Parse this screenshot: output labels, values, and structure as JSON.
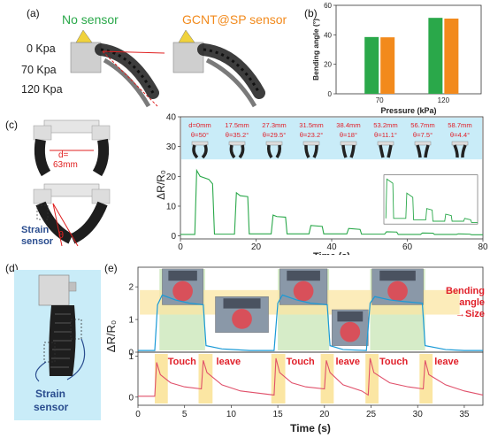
{
  "panel_labels": [
    "(a)",
    "(b)",
    "(c)",
    "(d)",
    "(e)"
  ],
  "panel_a": {
    "no_sensor": "No sensor",
    "sensor": "GCNT@SP sensor",
    "pressures": [
      "0 Kpa",
      "70 Kpa",
      "120 Kpa"
    ]
  },
  "panel_c": {
    "d_label": "d=",
    "d_value": "63mm",
    "theta": "θ",
    "strain_sensor": [
      "Strain",
      "sensor"
    ],
    "top_labels": [
      {
        "d": "d=0mm",
        "theta": "θ=50°"
      },
      {
        "d": "17.5mm",
        "theta": "θ=35.2°"
      },
      {
        "d": "27.3mm",
        "theta": "θ=29.5°"
      },
      {
        "d": "31.5mm",
        "theta": "θ=23.2°"
      },
      {
        "d": "38.4mm",
        "theta": "θ=18°"
      },
      {
        "d": "53.2mm",
        "theta": "θ=11.1°"
      },
      {
        "d": "56.7mm",
        "theta": "θ=7.5°"
      },
      {
        "d": "58.7mm",
        "theta": "θ=4.4°"
      }
    ]
  },
  "panel_d": {
    "label": [
      "Strain",
      "sensor"
    ]
  },
  "panel_e": {
    "annotation": [
      "Bending",
      "angle",
      "→Size"
    ],
    "touch": "Touch",
    "leave": "leave"
  },
  "colors": {
    "green": "#2aa84a",
    "orange": "#f28a1c",
    "red_text": "#e0202a",
    "blue_line": "#1a9ad6",
    "red_line": "#e0506a",
    "light_blue": "#c9ecf8",
    "light_green": "#d6ecc8",
    "light_yellow": "#fbe6a3"
  },
  "chart_data": [
    {
      "type": "bar",
      "panel": "b",
      "categories": [
        "70",
        "120"
      ],
      "series": [
        {
          "values": [
            38.5,
            51.5
          ],
          "color": "#2aa84a"
        },
        {
          "values": [
            38.3,
            51.0
          ],
          "color": "#f28a1c"
        }
      ],
      "xlabel": "Pressure (kPa)",
      "ylabel": "Bending angle (°)",
      "ylim": [
        0,
        60
      ],
      "yticks": [
        "0",
        "20",
        "40",
        "60"
      ]
    },
    {
      "type": "line",
      "panel": "c",
      "xlabel": "Time (s)",
      "ylabel": "ΔR/R₀",
      "xlim": [
        0,
        80
      ],
      "ylim": [
        -1,
        40
      ],
      "xticks": [
        "0",
        "20",
        "40",
        "60",
        "80"
      ],
      "yticks": [
        "0",
        "10",
        "20",
        "30",
        "40"
      ],
      "series": [
        {
          "color": "#2aa84a",
          "x": [
            0,
            3.8,
            4.3,
            5.2,
            7.5,
            8.5,
            9.0,
            14.3,
            14.8,
            15.8,
            17.8,
            18.2,
            24.0,
            24.5,
            25.5,
            27.8,
            28.2,
            34.0,
            34.5,
            37.5,
            37.9,
            44.0,
            44.5,
            47.5,
            47.9,
            54.0,
            54.5,
            57.2,
            57.6,
            63.5,
            64.0,
            66.8,
            67.2,
            73.0,
            73.5,
            76.5,
            77.0,
            80
          ],
          "y": [
            0.5,
            0.5,
            22,
            20,
            19,
            17.5,
            0.6,
            0.6,
            14.5,
            13.5,
            13.2,
            0.7,
            0.7,
            7.0,
            6.5,
            6.3,
            0.7,
            0.7,
            3.5,
            3.2,
            0.7,
            0.7,
            2.5,
            2.2,
            0.6,
            0.6,
            1.4,
            1.3,
            0.5,
            0.5,
            1.0,
            0.9,
            0.5,
            0.5,
            0.7,
            0.6,
            0.4,
            0.4
          ]
        }
      ]
    },
    {
      "type": "line",
      "panel": "e",
      "xlabel": "Time (s)",
      "ylabel": "ΔR/R₀",
      "xlim": [
        0,
        37
      ],
      "xticks": [
        "0",
        "5",
        "10",
        "15",
        "20",
        "25",
        "30",
        "35"
      ],
      "subplots": [
        {
          "ylim": [
            0,
            2.6
          ],
          "yticks": [
            "0",
            "1",
            "2"
          ],
          "series": [
            {
              "color": "#1a9ad6",
              "x": [
                0,
                1.8,
                2.1,
                2.6,
                4,
                5.5,
                7.0,
                7.3,
                9,
                12,
                14.6,
                15.0,
                15.5,
                17,
                18.5,
                20.3,
                20.6,
                22,
                24.5,
                24.9,
                25.4,
                27,
                28.5,
                30.5,
                30.8,
                33,
                35,
                37
              ],
              "y": [
                0.05,
                0.05,
                1.45,
                1.75,
                1.6,
                1.5,
                1.45,
                0.2,
                0.1,
                0.05,
                0.05,
                1.5,
                1.75,
                1.6,
                1.5,
                1.45,
                0.2,
                0.08,
                0.05,
                1.5,
                1.7,
                1.6,
                1.55,
                1.5,
                0.2,
                0.08,
                0.05,
                0.05
              ]
            }
          ]
        },
        {
          "ylim": [
            -0.2,
            1.1
          ],
          "yticks": [
            "0",
            "1"
          ],
          "series": [
            {
              "color": "#e0506a",
              "x": [
                0,
                1.8,
                2.0,
                2.4,
                3.5,
                5,
                6.8,
                7.0,
                7.4,
                9,
                11,
                14.6,
                14.8,
                15.2,
                16.5,
                18,
                20.0,
                20.2,
                20.6,
                22,
                24,
                24.7,
                24.9,
                25.3,
                27,
                29,
                30.6,
                30.8,
                31.2,
                33,
                35,
                37
              ],
              "y": [
                0.02,
                0.02,
                0.85,
                0.55,
                0.35,
                0.25,
                0.2,
                0.9,
                0.6,
                0.3,
                0.15,
                0.05,
                0.95,
                0.6,
                0.35,
                0.25,
                0.2,
                0.9,
                0.6,
                0.3,
                0.15,
                0.05,
                0.95,
                0.6,
                0.35,
                0.25,
                0.2,
                0.9,
                0.55,
                0.3,
                0.15,
                0.05
              ]
            }
          ]
        }
      ]
    }
  ]
}
